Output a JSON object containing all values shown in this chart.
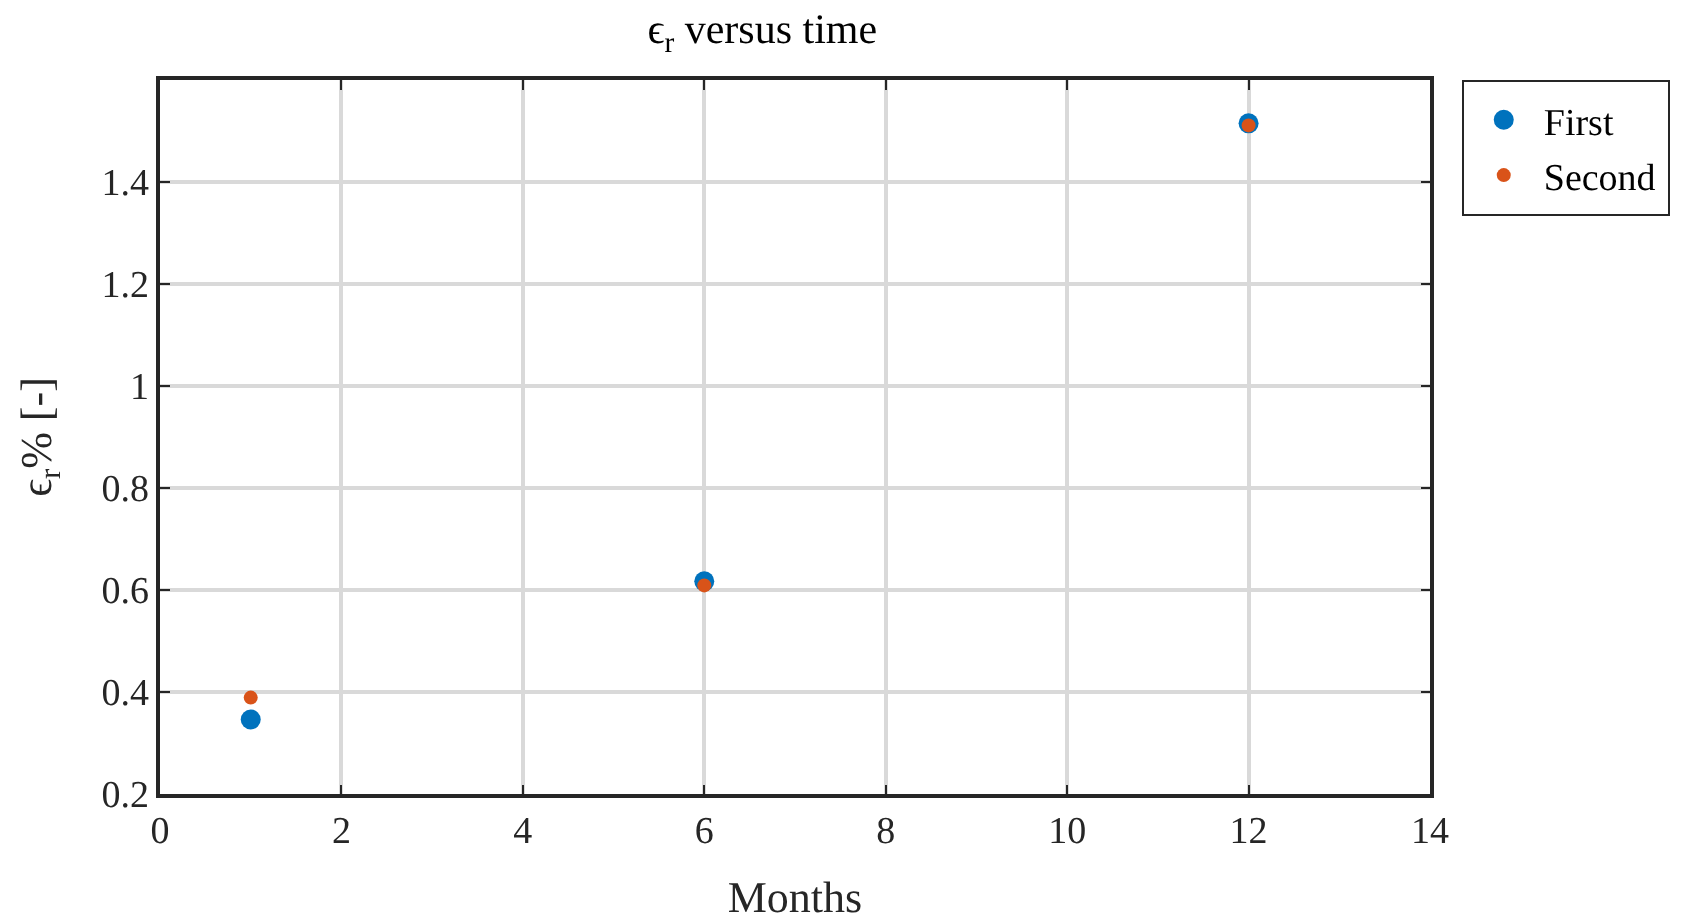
{
  "chart_data": {
    "type": "scatter",
    "title": "ϵ$_{r}$ versus time",
    "xlabel": "Months",
    "ylabel": "ϵ$_{r}$% [-]",
    "x": [
      1,
      6,
      12
    ],
    "series": [
      {
        "name": "First",
        "color": "#0072bd",
        "values": [
          0.346,
          0.617,
          1.515
        ]
      },
      {
        "name": "Second",
        "color": "#d95319",
        "values": [
          0.389,
          0.609,
          1.511
        ]
      }
    ],
    "xlim": [
      0,
      14
    ],
    "xticks": [
      0,
      2,
      4,
      6,
      8,
      10,
      12,
      14
    ],
    "ylim": [
      0.2,
      1.6
    ],
    "yticks": [
      0.2,
      0.4,
      0.6,
      0.8,
      1,
      1.2,
      1.4
    ],
    "grid": true,
    "legend": "top right",
    "marker": "circle"
  }
}
